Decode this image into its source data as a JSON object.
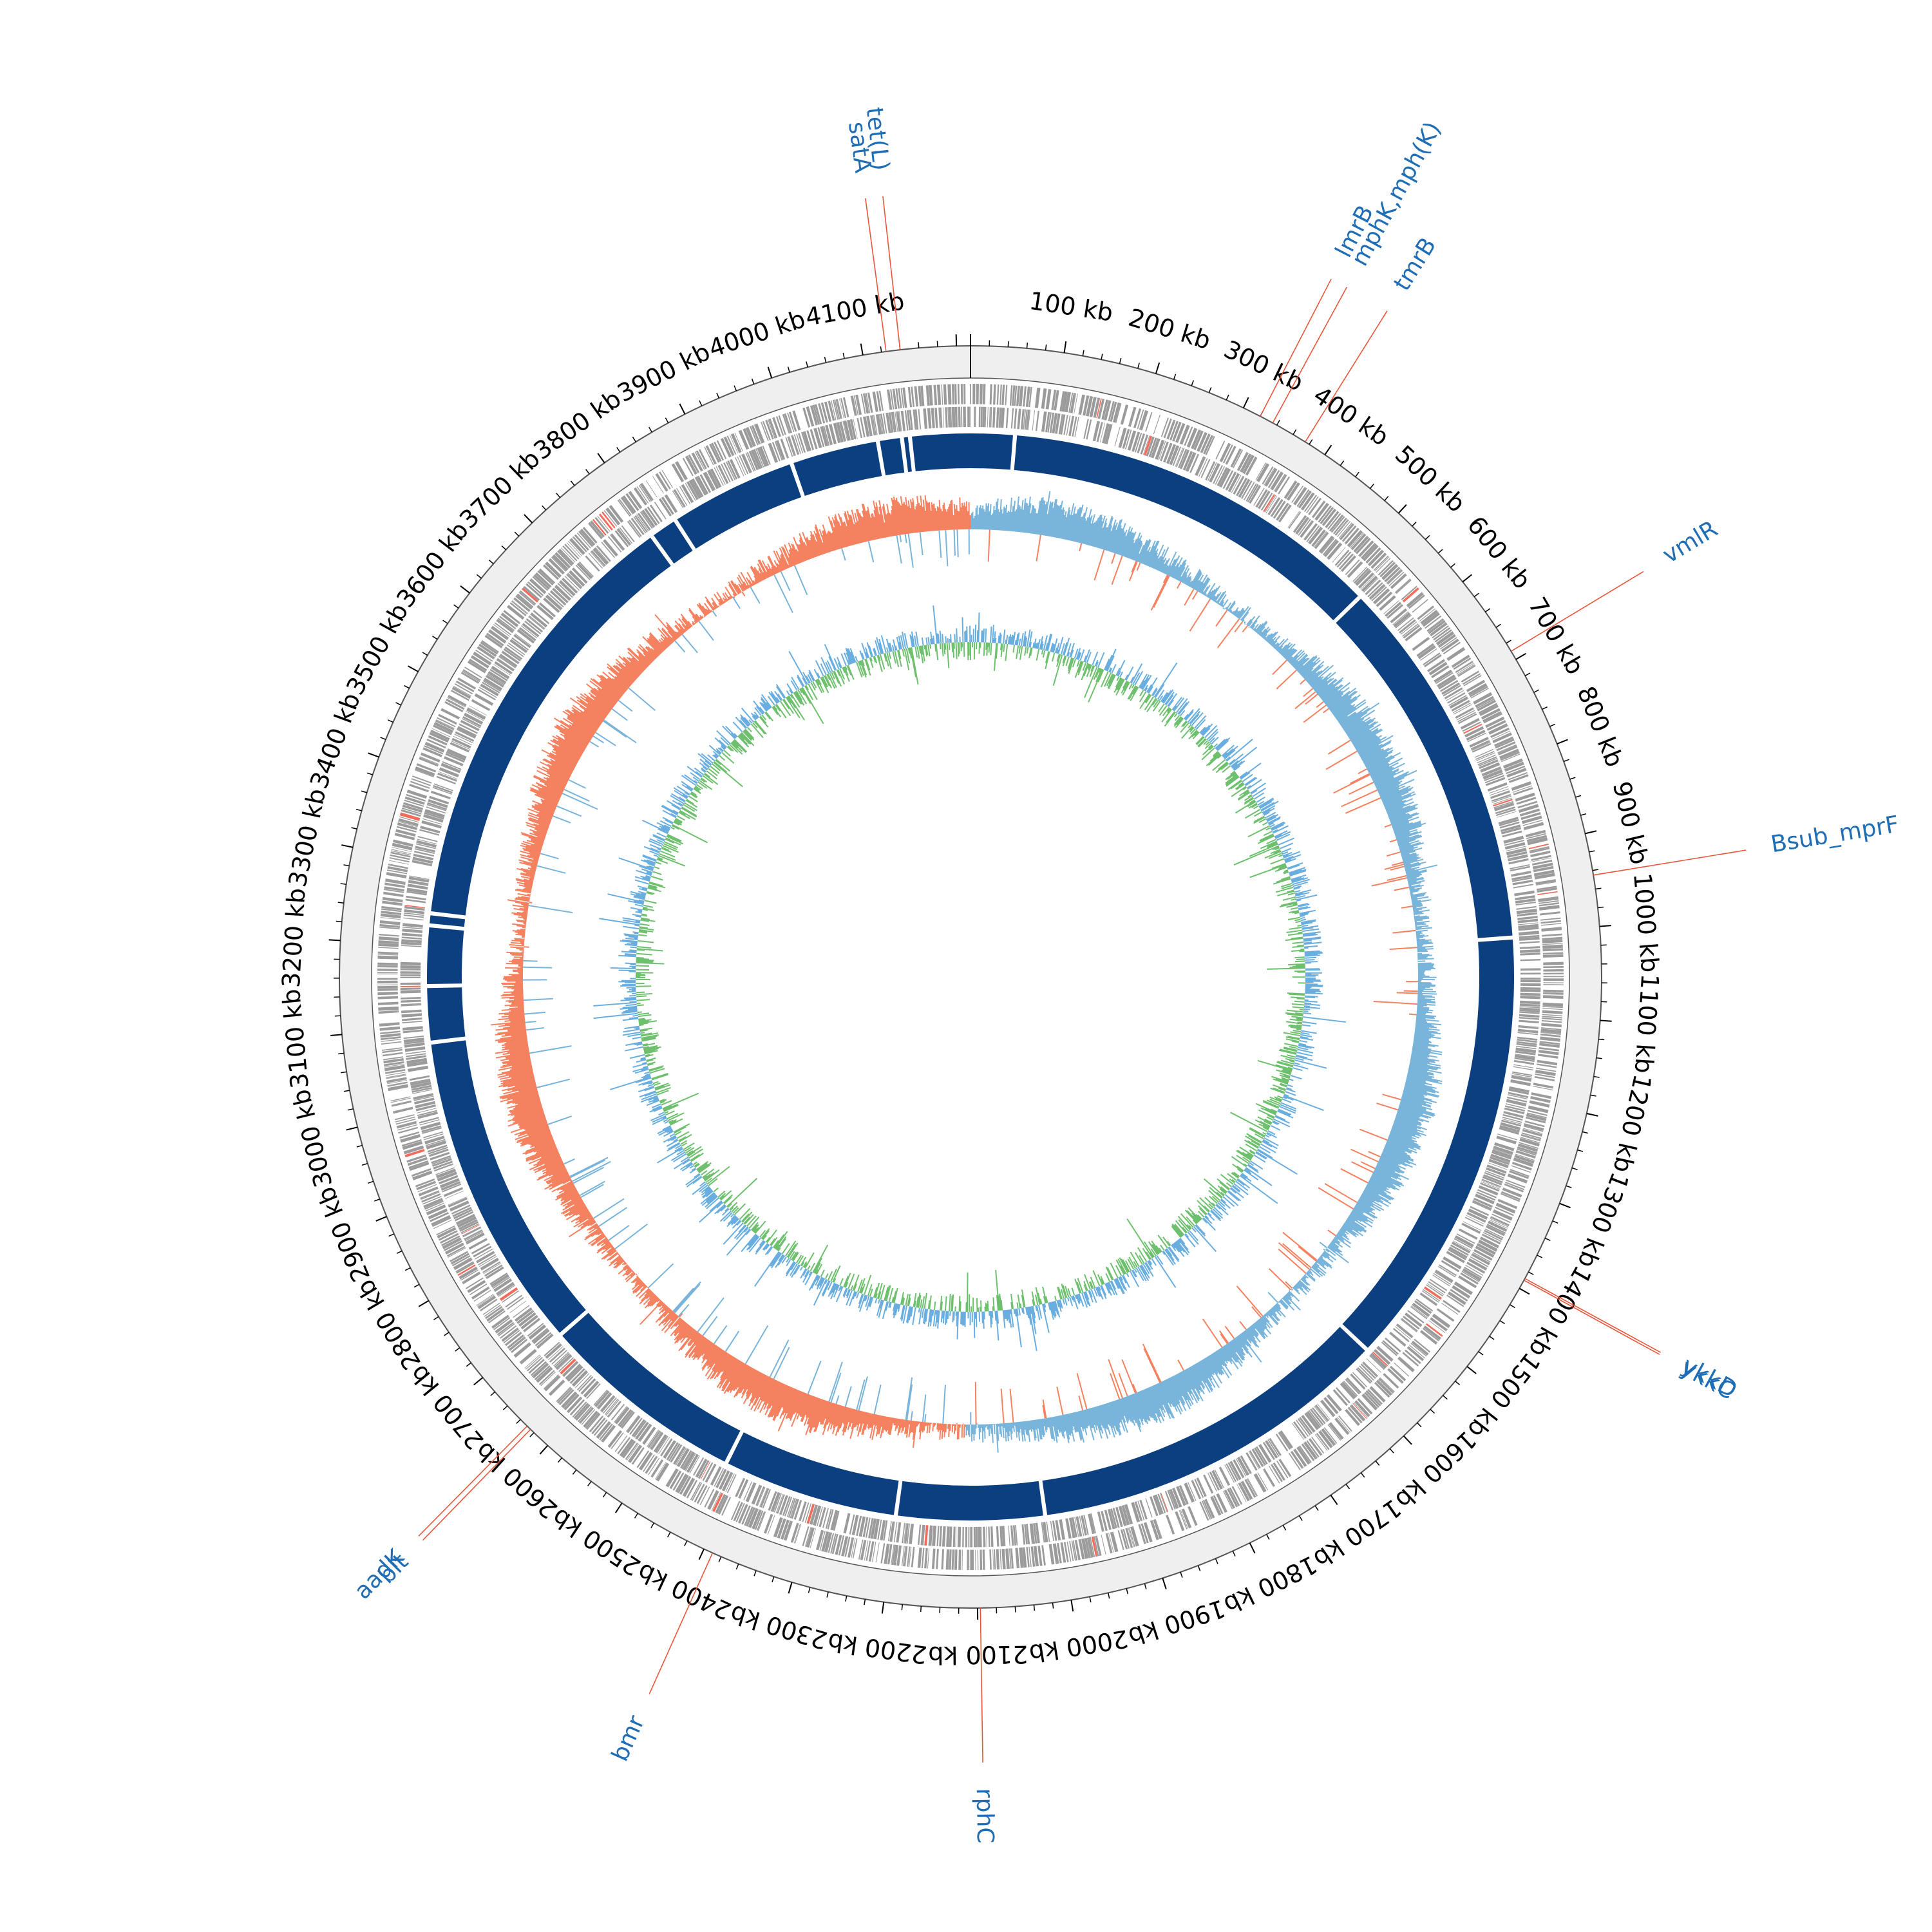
{
  "genome": {
    "length_kb": 4215,
    "unit": "kb"
  },
  "colors": {
    "backbone": "#efefef",
    "backbone_edge": "#555555",
    "cds": "#9b9b9b",
    "cds_highlight": "#f26b5b",
    "contig": "#0b3f80",
    "gc_content_pos": "#79b4da",
    "gc_content_neg": "#f4815f",
    "gc_skew_pos": "#6ec06e",
    "gc_skew_neg": "#6aaee0",
    "label": "#1f6db4",
    "leader": "#e8553a"
  },
  "axis": {
    "major_step_kb": 100,
    "minor_step_kb": 20,
    "labels": [
      {
        "kb": 100,
        "text": "100 kb"
      },
      {
        "kb": 200,
        "text": "200 kb"
      },
      {
        "kb": 300,
        "text": "300 kb"
      },
      {
        "kb": 400,
        "text": "400 kb"
      },
      {
        "kb": 500,
        "text": "500 kb"
      },
      {
        "kb": 600,
        "text": "600 kb"
      },
      {
        "kb": 700,
        "text": "700 kb"
      },
      {
        "kb": 800,
        "text": "800 kb"
      },
      {
        "kb": 900,
        "text": "900 kb"
      },
      {
        "kb": 1000,
        "text": "1000 kb"
      },
      {
        "kb": 1100,
        "text": "1100 kb"
      },
      {
        "kb": 1200,
        "text": "1200 kb"
      },
      {
        "kb": 1300,
        "text": "1300 kb"
      },
      {
        "kb": 1400,
        "text": "1400 kb"
      },
      {
        "kb": 1500,
        "text": "1500 kb"
      },
      {
        "kb": 1600,
        "text": "1600 kb"
      },
      {
        "kb": 1700,
        "text": "1700 kb"
      },
      {
        "kb": 1800,
        "text": "1800 kb"
      },
      {
        "kb": 1900,
        "text": "1900 kb"
      },
      {
        "kb": 2000,
        "text": "2000 kb"
      },
      {
        "kb": 2100,
        "text": "2100 kb"
      },
      {
        "kb": 2200,
        "text": "2200 kb"
      },
      {
        "kb": 2300,
        "text": "2300 kb"
      },
      {
        "kb": 2400,
        "text": "2400 kb"
      },
      {
        "kb": 2500,
        "text": "2500 kb"
      },
      {
        "kb": 2600,
        "text": "2600 kb"
      },
      {
        "kb": 2700,
        "text": "2700 kb"
      },
      {
        "kb": 2800,
        "text": "2800 kb"
      },
      {
        "kb": 2900,
        "text": "2900 kb"
      },
      {
        "kb": 3000,
        "text": "3000 kb"
      },
      {
        "kb": 3100,
        "text": "3100 kb"
      },
      {
        "kb": 3200,
        "text": "3200 kb"
      },
      {
        "kb": 3300,
        "text": "3300 kb"
      },
      {
        "kb": 3400,
        "text": "3400 kb"
      },
      {
        "kb": 3500,
        "text": "3500 kb"
      },
      {
        "kb": 3600,
        "text": "3600 kb"
      },
      {
        "kb": 3700,
        "text": "3700 kb"
      },
      {
        "kb": 3800,
        "text": "3800 kb"
      },
      {
        "kb": 3900,
        "text": "3900 kb"
      },
      {
        "kb": 4000,
        "text": "4000 kb"
      },
      {
        "kb": 4100,
        "text": "4100 kb"
      }
    ]
  },
  "contig_gaps_kb": [
    55,
    535,
    1005,
    1560,
    2015,
    2200,
    2420,
    2680,
    3080,
    3150,
    3225,
    3240,
    3795,
    3830,
    3990,
    4100,
    4130,
    4140
  ],
  "genes": [
    {
      "name": "tet(L)",
      "kb": 4140
    },
    {
      "name": "satA",
      "kb": 4125
    },
    {
      "name": "mphK,mph(K)",
      "kb": 335
    },
    {
      "name": "lmrB",
      "kb": 320
    },
    {
      "name": "tmrB",
      "kb": 375
    },
    {
      "name": "vmlR",
      "kb": 690
    },
    {
      "name": "Bsub_mprF",
      "kb": 945
    },
    {
      "name": "ykkC",
      "kb": 1390
    },
    {
      "name": "ykkD",
      "kb": 1388
    },
    {
      "name": "rphC",
      "kb": 2097
    },
    {
      "name": "bmr",
      "kb": 2390
    },
    {
      "name": "aadK",
      "kb": 2630
    },
    {
      "name": "blt",
      "kb": 2625
    }
  ]
}
